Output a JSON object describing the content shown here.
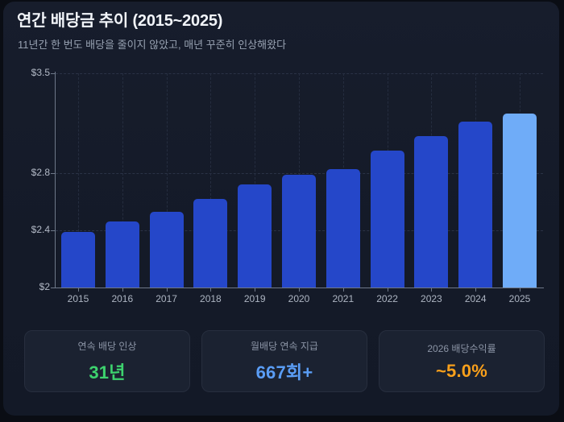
{
  "header": {
    "title": "연간 배당금 추이 (2015~2025)",
    "subtitle": "11년간 한 번도 배당을 줄이지 않았고, 매년 꾸준히 인상해왔다"
  },
  "chart_data": {
    "type": "bar",
    "categories": [
      "2015",
      "2016",
      "2017",
      "2018",
      "2019",
      "2020",
      "2021",
      "2022",
      "2023",
      "2024",
      "2025"
    ],
    "values": [
      2.39,
      2.46,
      2.53,
      2.62,
      2.72,
      2.79,
      2.83,
      2.96,
      3.06,
      3.16,
      3.22
    ],
    "title": "연간 배당금 추이 (2015~2025)",
    "xlabel": "",
    "ylabel": "",
    "ylim": [
      2,
      3.5
    ],
    "yticks": [
      {
        "value": 2,
        "label": "$2"
      },
      {
        "value": 2.4,
        "label": "$2.4"
      },
      {
        "value": 2.8,
        "label": "$2.8"
      },
      {
        "value": 3.5,
        "label": "$3.5"
      }
    ],
    "grid": "dashed-both",
    "legend": "none",
    "bar_color": "#2547c9",
    "highlight_index": 10,
    "highlight_color": "#6facf8"
  },
  "stats": [
    {
      "label": "연속 배당 인상",
      "value": "31년",
      "color": "#3dd36e"
    },
    {
      "label": "월배당 연속 지급",
      "value": "667회+",
      "color": "#5a9df5"
    },
    {
      "label": "2026 배당수익률",
      "value": "~5.0%",
      "color": "#f9a01b"
    }
  ],
  "colors": {
    "page_bg": "#0a0d14",
    "panel_bg": "#151b29",
    "title": "#f2f5fa",
    "subtitle": "#97a1b1",
    "axis": "#6e7889",
    "tick_label": "#b0b8c5",
    "grid": "#2a3246",
    "card_bg": "#1b2231",
    "card_border": "#272e3e"
  }
}
